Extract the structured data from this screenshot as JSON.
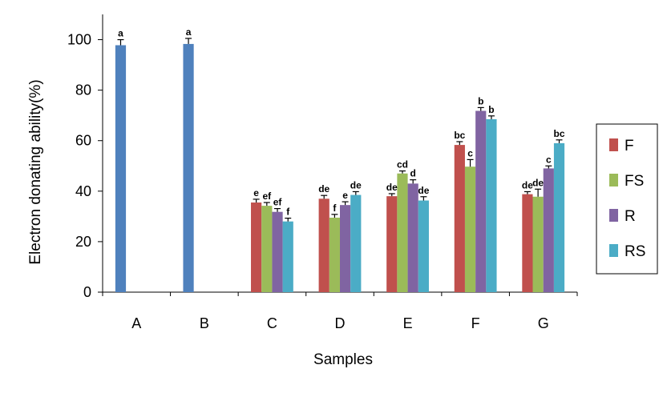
{
  "chart_data": {
    "type": "bar",
    "xlabel": "Samples",
    "ylabel": "Electron donating ability(%)",
    "ylim": [
      0,
      110
    ],
    "yticks": [
      0,
      20,
      40,
      60,
      80,
      100
    ],
    "grid": false,
    "legend_position": "right",
    "categories": [
      "A",
      "B",
      "C",
      "D",
      "E",
      "F",
      "G"
    ],
    "single": [
      {
        "category": "A",
        "value": 97.8,
        "err": 2.2,
        "label": "a",
        "color": "#4F81BD"
      },
      {
        "category": "B",
        "value": 98.3,
        "err": 2.2,
        "label": "a",
        "color": "#4F81BD"
      }
    ],
    "series": [
      {
        "name": "F",
        "color": "#C0504D",
        "values": [
          null,
          null,
          35.5,
          37.0,
          38.0,
          58.3,
          38.8
        ],
        "errors": [
          null,
          null,
          1.3,
          1.3,
          1.0,
          1.3,
          1.0
        ],
        "labels": [
          null,
          null,
          "e",
          "de",
          "de",
          "bc",
          "de"
        ]
      },
      {
        "name": "FS",
        "color": "#9BBB59",
        "values": [
          null,
          null,
          34.2,
          29.5,
          47.0,
          49.7,
          37.8
        ],
        "errors": [
          null,
          null,
          1.3,
          1.3,
          1.0,
          2.8,
          3.0
        ],
        "labels": [
          null,
          null,
          "ef",
          "f",
          "cd",
          "c",
          "de"
        ]
      },
      {
        "name": "R",
        "color": "#8064A2",
        "values": [
          null,
          null,
          31.8,
          34.5,
          43.0,
          71.8,
          49.0
        ],
        "errors": [
          null,
          null,
          1.3,
          1.3,
          1.5,
          1.3,
          1.0
        ],
        "labels": [
          null,
          null,
          "ef",
          "e",
          "d",
          "b",
          "c"
        ]
      },
      {
        "name": "RS",
        "color": "#4BACC6",
        "values": [
          null,
          null,
          28.0,
          38.5,
          36.3,
          68.5,
          59.0
        ],
        "errors": [
          null,
          null,
          1.3,
          1.3,
          1.5,
          1.3,
          1.3
        ],
        "labels": [
          null,
          null,
          "f",
          "de",
          "de",
          "b",
          "bc"
        ]
      }
    ]
  }
}
